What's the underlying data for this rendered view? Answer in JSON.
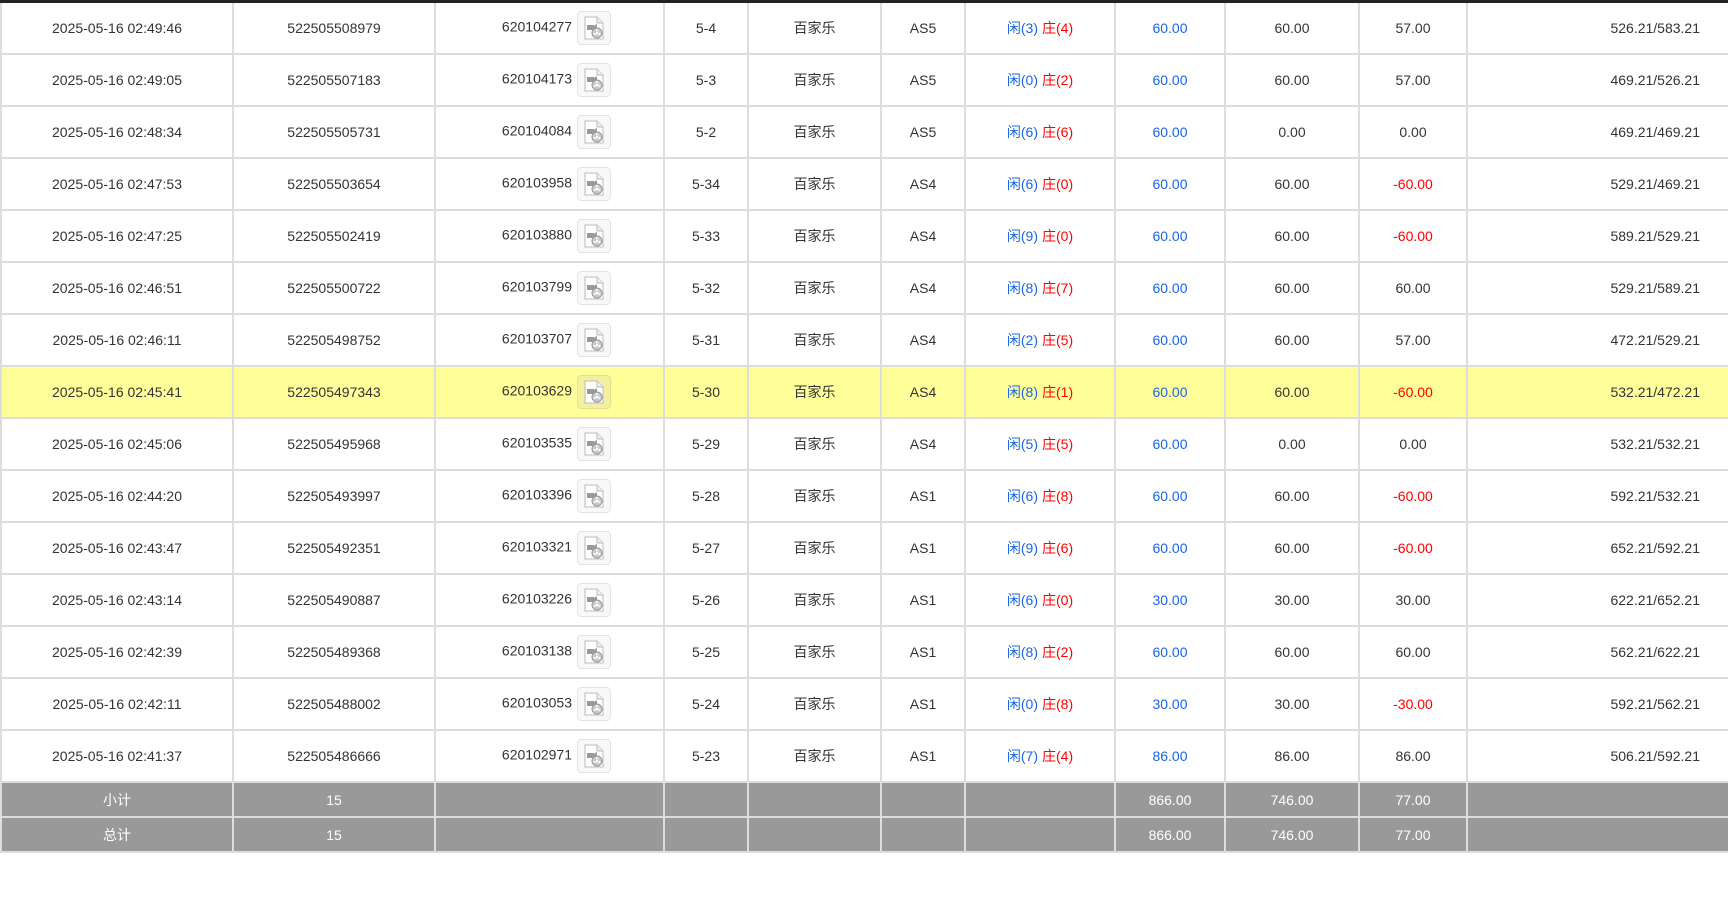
{
  "colors": {
    "blue": "#1a66e8",
    "red": "#ff0000",
    "highlight": "#ffff99",
    "footer": "#999999"
  },
  "icons": {
    "record": "video-file-icon"
  },
  "rows": [
    {
      "time": "2025-05-16 02:49:46",
      "order": "522505508979",
      "game": "620104277",
      "shoe": "5-4",
      "type": "百家乐",
      "table": "AS5",
      "player": "闲(3)",
      "banker": "庄(4)",
      "bet": "60.00",
      "valid": "60.00",
      "win": "57.00",
      "balance": "526.21/583.21"
    },
    {
      "time": "2025-05-16 02:49:05",
      "order": "522505507183",
      "game": "620104173",
      "shoe": "5-3",
      "type": "百家乐",
      "table": "AS5",
      "player": "闲(0)",
      "banker": "庄(2)",
      "bet": "60.00",
      "valid": "60.00",
      "win": "57.00",
      "balance": "469.21/526.21"
    },
    {
      "time": "2025-05-16 02:48:34",
      "order": "522505505731",
      "game": "620104084",
      "shoe": "5-2",
      "type": "百家乐",
      "table": "AS5",
      "player": "闲(6)",
      "banker": "庄(6)",
      "bet": "60.00",
      "valid": "0.00",
      "win": "0.00",
      "balance": "469.21/469.21"
    },
    {
      "time": "2025-05-16 02:47:53",
      "order": "522505503654",
      "game": "620103958",
      "shoe": "5-34",
      "type": "百家乐",
      "table": "AS4",
      "player": "闲(6)",
      "banker": "庄(0)",
      "bet": "60.00",
      "valid": "60.00",
      "win": "-60.00",
      "balance": "529.21/469.21"
    },
    {
      "time": "2025-05-16 02:47:25",
      "order": "522505502419",
      "game": "620103880",
      "shoe": "5-33",
      "type": "百家乐",
      "table": "AS4",
      "player": "闲(9)",
      "banker": "庄(0)",
      "bet": "60.00",
      "valid": "60.00",
      "win": "-60.00",
      "balance": "589.21/529.21"
    },
    {
      "time": "2025-05-16 02:46:51",
      "order": "522505500722",
      "game": "620103799",
      "shoe": "5-32",
      "type": "百家乐",
      "table": "AS4",
      "player": "闲(8)",
      "banker": "庄(7)",
      "bet": "60.00",
      "valid": "60.00",
      "win": "60.00",
      "balance": "529.21/589.21"
    },
    {
      "time": "2025-05-16 02:46:11",
      "order": "522505498752",
      "game": "620103707",
      "shoe": "5-31",
      "type": "百家乐",
      "table": "AS4",
      "player": "闲(2)",
      "banker": "庄(5)",
      "bet": "60.00",
      "valid": "60.00",
      "win": "57.00",
      "balance": "472.21/529.21"
    },
    {
      "time": "2025-05-16 02:45:41",
      "order": "522505497343",
      "game": "620103629",
      "shoe": "5-30",
      "type": "百家乐",
      "table": "AS4",
      "player": "闲(8)",
      "banker": "庄(1)",
      "bet": "60.00",
      "valid": "60.00",
      "win": "-60.00",
      "balance": "532.21/472.21",
      "highlighted": true
    },
    {
      "time": "2025-05-16 02:45:06",
      "order": "522505495968",
      "game": "620103535",
      "shoe": "5-29",
      "type": "百家乐",
      "table": "AS4",
      "player": "闲(5)",
      "banker": "庄(5)",
      "bet": "60.00",
      "valid": "0.00",
      "win": "0.00",
      "balance": "532.21/532.21"
    },
    {
      "time": "2025-05-16 02:44:20",
      "order": "522505493997",
      "game": "620103396",
      "shoe": "5-28",
      "type": "百家乐",
      "table": "AS1",
      "player": "闲(6)",
      "banker": "庄(8)",
      "bet": "60.00",
      "valid": "60.00",
      "win": "-60.00",
      "balance": "592.21/532.21"
    },
    {
      "time": "2025-05-16 02:43:47",
      "order": "522505492351",
      "game": "620103321",
      "shoe": "5-27",
      "type": "百家乐",
      "table": "AS1",
      "player": "闲(9)",
      "banker": "庄(6)",
      "bet": "60.00",
      "valid": "60.00",
      "win": "-60.00",
      "balance": "652.21/592.21"
    },
    {
      "time": "2025-05-16 02:43:14",
      "order": "522505490887",
      "game": "620103226",
      "shoe": "5-26",
      "type": "百家乐",
      "table": "AS1",
      "player": "闲(6)",
      "banker": "庄(0)",
      "bet": "30.00",
      "valid": "30.00",
      "win": "30.00",
      "balance": "622.21/652.21"
    },
    {
      "time": "2025-05-16 02:42:39",
      "order": "522505489368",
      "game": "620103138",
      "shoe": "5-25",
      "type": "百家乐",
      "table": "AS1",
      "player": "闲(8)",
      "banker": "庄(2)",
      "bet": "60.00",
      "valid": "60.00",
      "win": "60.00",
      "balance": "562.21/622.21"
    },
    {
      "time": "2025-05-16 02:42:11",
      "order": "522505488002",
      "game": "620103053",
      "shoe": "5-24",
      "type": "百家乐",
      "table": "AS1",
      "player": "闲(0)",
      "banker": "庄(8)",
      "bet": "30.00",
      "valid": "30.00",
      "win": "-30.00",
      "balance": "592.21/562.21"
    },
    {
      "time": "2025-05-16 02:41:37",
      "order": "522505486666",
      "game": "620102971",
      "shoe": "5-23",
      "type": "百家乐",
      "table": "AS1",
      "player": "闲(7)",
      "banker": "庄(4)",
      "bet": "86.00",
      "valid": "86.00",
      "win": "86.00",
      "balance": "506.21/592.21"
    }
  ],
  "footer": [
    {
      "label": "小计",
      "count": "15",
      "bet": "866.00",
      "valid": "746.00",
      "win": "77.00"
    },
    {
      "label": "总计",
      "count": "15",
      "bet": "866.00",
      "valid": "746.00",
      "win": "77.00"
    }
  ]
}
